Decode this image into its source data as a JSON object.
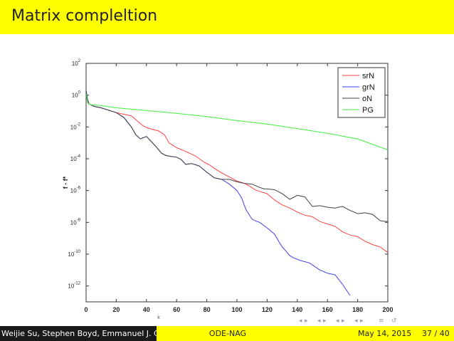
{
  "slide": {
    "title": "Matrix compleltion"
  },
  "footer": {
    "authors": "Weijie Su, Stephen Boyd, Emmanuel J. Cande",
    "short_title": "ODE-NAG",
    "date": "May 14, 2015",
    "page": "37 / 40"
  },
  "nav": {
    "icons": [
      "nav-prev-slide-icon",
      "nav-next-slide-icon",
      "nav-prev-frame-icon",
      "nav-next-frame-icon",
      "nav-prev-section-icon",
      "nav-next-section-icon",
      "nav-prev-subsection-icon",
      "nav-next-subsection-icon",
      "nav-align-icon",
      "nav-search-icon"
    ],
    "color": "#9a9ab4"
  },
  "chart_data": {
    "type": "line",
    "title": "",
    "xlabel": "k",
    "ylabel": "f - f*",
    "xlim": [
      0,
      200
    ],
    "ylim_log10": [
      -13,
      2
    ],
    "yscale": "log",
    "xticks": [
      "0",
      "20",
      "40",
      "60",
      "80",
      "100",
      "120",
      "140",
      "160",
      "180",
      "200"
    ],
    "yticks": [
      {
        "base": "10",
        "exp": "2"
      },
      {
        "base": "10",
        "exp": "0"
      },
      {
        "base": "10",
        "exp": "-2"
      },
      {
        "base": "10",
        "exp": "-4"
      },
      {
        "base": "10",
        "exp": "-6"
      },
      {
        "base": "10",
        "exp": "-8"
      },
      {
        "base": "10",
        "exp": "-10"
      },
      {
        "base": "10",
        "exp": "-12"
      }
    ],
    "legend_position": "top-right",
    "series": [
      {
        "name": "srN",
        "color": "#ff4040",
        "x": [
          0,
          1,
          2,
          5,
          10,
          20,
          30,
          38,
          42,
          48,
          52,
          55,
          60,
          65,
          72,
          78,
          82,
          85,
          90,
          95,
          100,
          105,
          108,
          112,
          115,
          120,
          125,
          130,
          135,
          140,
          145,
          150,
          155,
          160,
          165,
          170,
          175,
          180,
          185,
          190,
          195,
          200
        ],
        "log10_y": [
          0.3,
          -0.3,
          -0.55,
          -0.7,
          -0.8,
          -1.1,
          -1.3,
          -1.95,
          -2.1,
          -2.25,
          -2.5,
          -3.0,
          -3.3,
          -3.5,
          -3.8,
          -4.2,
          -4.4,
          -4.6,
          -4.9,
          -5.15,
          -5.4,
          -5.55,
          -5.7,
          -5.95,
          -6.05,
          -6.2,
          -6.6,
          -6.9,
          -7.1,
          -7.35,
          -7.55,
          -7.65,
          -7.95,
          -8.1,
          -8.25,
          -8.6,
          -8.8,
          -8.9,
          -9.2,
          -9.4,
          -9.55,
          -9.9
        ]
      },
      {
        "name": "grN",
        "color": "#4040e0",
        "x": [
          0,
          1,
          2,
          5,
          10,
          20,
          25,
          30,
          33,
          36,
          40,
          43,
          46,
          50,
          53,
          56,
          60,
          63,
          66,
          70,
          75,
          80,
          85,
          90,
          95,
          100,
          103,
          106,
          110,
          112,
          115,
          120,
          125,
          128,
          130,
          132,
          135,
          138,
          142,
          148,
          155,
          160,
          165,
          170,
          175
        ],
        "log10_y": [
          0.3,
          -0.3,
          -0.55,
          -0.7,
          -0.8,
          -1.1,
          -1.4,
          -2.0,
          -2.5,
          -2.75,
          -2.6,
          -2.9,
          -3.2,
          -3.65,
          -3.8,
          -3.85,
          -3.9,
          -4.05,
          -4.35,
          -4.3,
          -4.45,
          -4.85,
          -5.2,
          -5.3,
          -5.6,
          -6.0,
          -6.45,
          -7.2,
          -7.8,
          -7.9,
          -8.0,
          -8.35,
          -8.75,
          -9.25,
          -9.55,
          -9.75,
          -10.1,
          -10.25,
          -10.4,
          -10.55,
          -11.0,
          -11.2,
          -11.3,
          -11.9,
          -12.6
        ]
      },
      {
        "name": "oN",
        "color": "#404040",
        "x": [
          0,
          1,
          2,
          5,
          10,
          20,
          25,
          30,
          33,
          36,
          40,
          43,
          46,
          50,
          53,
          56,
          60,
          63,
          66,
          70,
          75,
          80,
          85,
          90,
          95,
          100,
          105,
          110,
          115,
          118,
          120,
          125,
          130,
          135,
          140,
          145,
          150,
          155,
          160,
          165,
          170,
          175,
          180,
          185,
          190,
          195,
          200
        ],
        "log10_y": [
          0.3,
          -0.3,
          -0.55,
          -0.7,
          -0.8,
          -1.1,
          -1.4,
          -2.0,
          -2.5,
          -2.75,
          -2.6,
          -2.9,
          -3.2,
          -3.65,
          -3.8,
          -3.85,
          -3.9,
          -4.05,
          -4.35,
          -4.3,
          -4.45,
          -4.85,
          -5.2,
          -5.3,
          -5.3,
          -5.45,
          -5.55,
          -5.6,
          -5.8,
          -5.9,
          -5.9,
          -5.95,
          -6.2,
          -6.55,
          -6.3,
          -6.4,
          -7.0,
          -6.95,
          -7.05,
          -7.1,
          -7.0,
          -7.25,
          -7.45,
          -7.4,
          -7.5,
          -7.9,
          -7.95
        ]
      },
      {
        "name": "PG",
        "color": "#40ee40",
        "x": [
          0,
          1,
          3,
          10,
          20,
          40,
          60,
          80,
          100,
          120,
          140,
          160,
          180,
          200
        ],
        "log10_y": [
          0.1,
          -0.5,
          -0.6,
          -0.65,
          -0.8,
          -0.97,
          -1.15,
          -1.35,
          -1.6,
          -1.82,
          -2.1,
          -2.4,
          -2.75,
          -3.45
        ]
      }
    ]
  }
}
